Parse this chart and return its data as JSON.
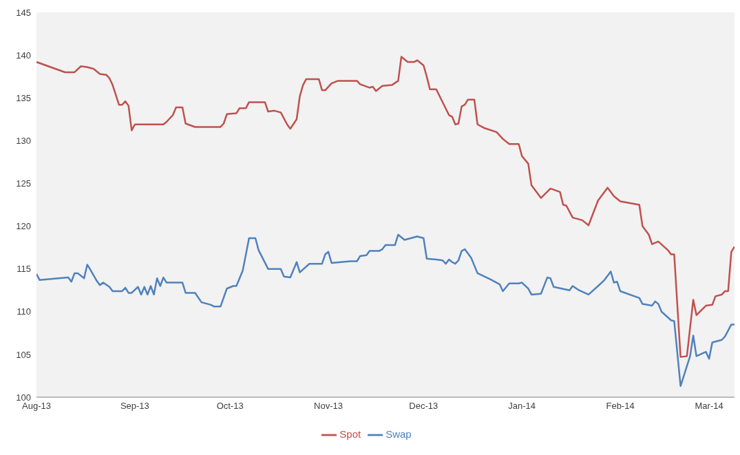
{
  "chart_data": {
    "type": "line",
    "xlim": [
      "2013-08-01",
      "2014-03-09"
    ],
    "ylim": [
      100,
      145
    ],
    "yticks": [
      100,
      105,
      110,
      115,
      120,
      125,
      130,
      135,
      140,
      145
    ],
    "xticks": [
      {
        "value": "2013-08-01",
        "label": "Aug-13"
      },
      {
        "value": "2013-09-01",
        "label": "Sep-13"
      },
      {
        "value": "2013-10-01",
        "label": "Oct-13"
      },
      {
        "value": "2013-11-01",
        "label": "Nov-13"
      },
      {
        "value": "2013-12-01",
        "label": "Dec-13"
      },
      {
        "value": "2014-01-01",
        "label": "Jan-14"
      },
      {
        "value": "2014-02-01",
        "label": "Feb-14"
      },
      {
        "value": "2014-03-01",
        "label": "Mar-14"
      }
    ],
    "legend": "bottom",
    "marker": "none",
    "line_style": "solid",
    "series": [
      {
        "name": "Spot",
        "color": "#c0504d",
        "x": [
          "2013-08-01",
          "2013-08-10",
          "2013-08-13",
          "2013-08-15",
          "2013-08-17",
          "2013-08-19",
          "2013-08-21",
          "2013-08-23",
          "2013-08-24",
          "2013-08-25",
          "2013-08-27",
          "2013-08-28",
          "2013-08-29",
          "2013-08-30",
          "2013-08-31",
          "2013-09-01",
          "2013-09-10",
          "2013-09-11",
          "2013-09-13",
          "2013-09-14",
          "2013-09-16",
          "2013-09-17",
          "2013-09-20",
          "2013-09-28",
          "2013-09-29",
          "2013-09-30",
          "2013-10-03",
          "2013-10-04",
          "2013-10-06",
          "2013-10-07",
          "2013-10-12",
          "2013-10-13",
          "2013-10-15",
          "2013-10-17",
          "2013-10-19",
          "2013-10-20",
          "2013-10-22",
          "2013-10-23",
          "2013-10-24",
          "2013-10-25",
          "2013-10-29",
          "2013-10-30",
          "2013-10-31",
          "2013-11-02",
          "2013-11-04",
          "2013-11-10",
          "2013-11-11",
          "2013-11-14",
          "2013-11-15",
          "2013-11-16",
          "2013-11-18",
          "2013-11-21",
          "2013-11-23",
          "2013-11-24",
          "2013-11-26",
          "2013-11-28",
          "2013-11-29",
          "2013-12-01",
          "2013-12-02",
          "2013-12-03",
          "2013-12-05",
          "2013-12-09",
          "2013-12-10",
          "2013-12-11",
          "2013-12-12",
          "2013-12-13",
          "2013-12-14",
          "2013-12-15",
          "2013-12-17",
          "2013-12-18",
          "2013-12-20",
          "2013-12-24",
          "2013-12-26",
          "2013-12-28",
          "2013-12-31",
          "2014-01-01",
          "2014-01-03",
          "2014-01-04",
          "2014-01-07",
          "2014-01-10",
          "2014-01-13",
          "2014-01-14",
          "2014-01-15",
          "2014-01-17",
          "2014-01-20",
          "2014-01-22",
          "2014-01-25",
          "2014-01-28",
          "2014-01-30",
          "2014-02-01",
          "2014-02-07",
          "2014-02-08",
          "2014-02-10",
          "2014-02-11",
          "2014-02-13",
          "2014-02-16",
          "2014-02-17",
          "2014-02-18",
          "2014-02-20",
          "2014-02-22",
          "2014-02-24",
          "2014-02-25",
          "2014-02-28",
          "2014-03-02",
          "2014-03-03",
          "2014-03-05",
          "2014-03-06",
          "2014-03-07",
          "2014-03-08",
          "2014-03-09"
        ],
        "values": [
          139.2,
          138.0,
          138.0,
          138.7,
          138.6,
          138.4,
          137.8,
          137.7,
          137.3,
          136.5,
          134.2,
          134.2,
          134.6,
          134.1,
          131.2,
          131.9,
          131.9,
          132.2,
          133.0,
          133.9,
          133.9,
          132.0,
          131.6,
          131.6,
          132.0,
          133.1,
          133.2,
          133.8,
          133.8,
          134.5,
          134.5,
          133.4,
          133.5,
          133.3,
          131.9,
          131.4,
          132.5,
          135.2,
          136.5,
          137.2,
          137.2,
          135.9,
          135.9,
          136.7,
          137.0,
          137.0,
          136.6,
          136.2,
          136.3,
          135.8,
          136.4,
          136.5,
          137.0,
          139.8,
          139.2,
          139.2,
          139.4,
          138.8,
          137.5,
          136.0,
          136.0,
          133.0,
          132.8,
          131.9,
          132.0,
          134.0,
          134.2,
          134.8,
          134.8,
          131.9,
          131.5,
          131.0,
          130.2,
          129.6,
          129.6,
          128.2,
          127.3,
          124.8,
          123.3,
          124.4,
          124.0,
          122.5,
          122.4,
          121.0,
          120.7,
          120.1,
          123.0,
          124.5,
          123.5,
          122.9,
          122.5,
          120.0,
          119.0,
          117.9,
          118.2,
          117.2,
          116.7,
          116.7,
          104.7,
          104.8,
          111.4,
          109.6,
          110.7,
          110.8,
          111.8,
          112.0,
          112.4,
          112.4,
          117.0,
          117.6
        ]
      },
      {
        "name": "Swap",
        "color": "#4f81bd",
        "x": [
          "2013-08-01",
          "2013-08-02",
          "2013-08-11",
          "2013-08-12",
          "2013-08-13",
          "2013-08-14",
          "2013-08-16",
          "2013-08-17",
          "2013-08-18",
          "2013-08-20",
          "2013-08-21",
          "2013-08-22",
          "2013-08-24",
          "2013-08-25",
          "2013-08-28",
          "2013-08-29",
          "2013-08-30",
          "2013-08-31",
          "2013-09-02",
          "2013-09-03",
          "2013-09-04",
          "2013-09-05",
          "2013-09-06",
          "2013-09-07",
          "2013-09-08",
          "2013-09-09",
          "2013-09-10",
          "2013-09-11",
          "2013-09-16",
          "2013-09-17",
          "2013-09-20",
          "2013-09-22",
          "2013-09-25",
          "2013-09-26",
          "2013-09-28",
          "2013-09-30",
          "2013-10-02",
          "2013-10-03",
          "2013-10-05",
          "2013-10-07",
          "2013-10-09",
          "2013-10-10",
          "2013-10-13",
          "2013-10-17",
          "2013-10-18",
          "2013-10-20",
          "2013-10-21",
          "2013-10-22",
          "2013-10-23",
          "2013-10-26",
          "2013-10-30",
          "2013-10-31",
          "2013-11-01",
          "2013-11-02",
          "2013-11-08",
          "2013-11-10",
          "2013-11-11",
          "2013-11-13",
          "2013-11-14",
          "2013-11-17",
          "2013-11-18",
          "2013-11-19",
          "2013-11-22",
          "2013-11-23",
          "2013-11-25",
          "2013-11-29",
          "2013-12-01",
          "2013-12-02",
          "2013-12-05",
          "2013-12-07",
          "2013-12-08",
          "2013-12-09",
          "2013-12-10",
          "2013-12-11",
          "2013-12-12",
          "2013-12-13",
          "2013-12-14",
          "2013-12-16",
          "2013-12-18",
          "2013-12-22",
          "2013-12-25",
          "2013-12-26",
          "2013-12-28",
          "2013-12-31",
          "2014-01-01",
          "2014-01-03",
          "2014-01-04",
          "2014-01-07",
          "2014-01-09",
          "2014-01-10",
          "2014-01-11",
          "2014-01-16",
          "2014-01-17",
          "2014-01-19",
          "2014-01-22",
          "2014-01-25",
          "2014-01-27",
          "2014-01-29",
          "2014-01-30",
          "2014-01-31",
          "2014-02-01",
          "2014-02-07",
          "2014-02-08",
          "2014-02-11",
          "2014-02-12",
          "2014-02-13",
          "2014-02-14",
          "2014-02-17",
          "2014-02-18",
          "2014-02-20",
          "2014-02-23",
          "2014-02-24",
          "2014-02-25",
          "2014-02-28",
          "2014-03-01",
          "2014-03-02",
          "2014-03-05",
          "2014-03-06",
          "2014-03-08",
          "2014-03-09"
        ],
        "values": [
          114.4,
          113.7,
          114.0,
          113.5,
          114.5,
          114.5,
          113.9,
          115.5,
          114.9,
          113.6,
          113.1,
          113.4,
          112.9,
          112.4,
          112.4,
          112.8,
          112.2,
          112.2,
          112.9,
          112.0,
          112.9,
          112.0,
          113.0,
          112.0,
          113.9,
          113.0,
          114.0,
          113.4,
          113.4,
          112.2,
          112.2,
          111.1,
          110.8,
          110.6,
          110.6,
          112.7,
          113.0,
          113.0,
          114.8,
          118.6,
          118.6,
          117.2,
          115.0,
          115.0,
          114.1,
          114.0,
          114.9,
          115.8,
          114.6,
          115.6,
          115.6,
          116.7,
          117.0,
          115.7,
          115.9,
          115.9,
          116.5,
          116.6,
          117.1,
          117.1,
          117.3,
          117.8,
          117.8,
          119.0,
          118.4,
          118.8,
          118.6,
          116.2,
          116.1,
          116.0,
          115.6,
          116.1,
          115.8,
          115.6,
          116.0,
          117.1,
          117.3,
          116.3,
          114.5,
          113.8,
          113.2,
          112.4,
          113.3,
          113.3,
          113.4,
          112.7,
          112.0,
          112.1,
          114.0,
          113.9,
          112.9,
          112.5,
          113.0,
          112.5,
          112.0,
          113.0,
          113.7,
          114.7,
          113.4,
          113.5,
          112.4,
          111.6,
          110.9,
          110.7,
          111.2,
          110.9,
          110.0,
          109.0,
          108.9,
          101.3,
          104.8,
          107.2,
          104.8,
          105.3,
          104.5,
          106.4,
          106.7,
          107.1,
          108.5,
          108.5
        ]
      }
    ]
  }
}
